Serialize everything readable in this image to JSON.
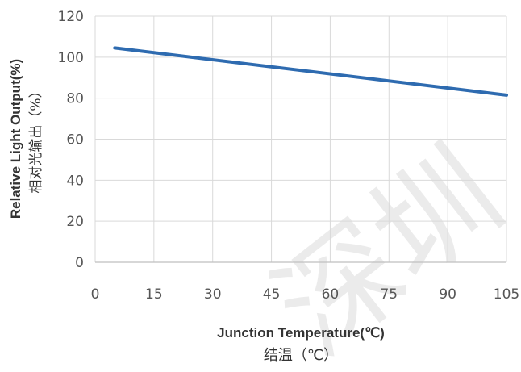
{
  "chart_data": {
    "type": "line",
    "x": [
      5,
      105
    ],
    "series": [
      {
        "values": [
          104.5,
          81.5
        ],
        "color": "#2e6bb0"
      }
    ],
    "xlabel": "Junction Temperature(℃)",
    "xlabel_cn": "结温（℃）",
    "ylabel": "Relative Light Output(%)",
    "ylabel_cn": "相对光输出（%）",
    "xlim": [
      0,
      105
    ],
    "ylim": [
      0,
      120
    ],
    "xticks": [
      0,
      15,
      30,
      45,
      60,
      75,
      90,
      105
    ],
    "yticks": [
      0,
      20,
      40,
      60,
      80,
      100,
      120
    ],
    "grid": true
  },
  "watermark": "深圳"
}
